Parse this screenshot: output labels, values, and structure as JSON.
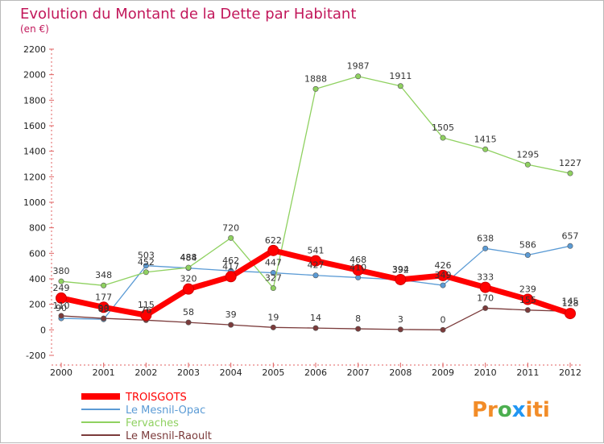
{
  "chart_data": {
    "type": "line",
    "title": "Evolution du Montant de la Dette par Habitant",
    "subtitle": "(en €)",
    "xlabel": "",
    "ylabel": "",
    "ylim": [
      -200,
      2200
    ],
    "yticks": [
      -200,
      0,
      200,
      400,
      600,
      800,
      1000,
      1200,
      1400,
      1600,
      1800,
      2000,
      2200
    ],
    "grid": false,
    "legend_position": "bottom-left",
    "categories": [
      "2000",
      "2001",
      "2002",
      "2003",
      "2004",
      "2005",
      "2006",
      "2007",
      "2008",
      "2009",
      "2010",
      "2011",
      "2012"
    ],
    "series": [
      {
        "name": "TROISGOTS",
        "color": "#ff0000",
        "values": [
          249,
          177,
          115,
          320,
          417,
          622,
          541,
          468,
          394,
          426,
          333,
          239,
          128
        ]
      },
      {
        "name": "Le Mesnil-Opac",
        "color": "#5b9bd5",
        "values": [
          90,
          83,
          503,
          484,
          462,
          447,
          427,
          410,
          392,
          349,
          638,
          586,
          657
        ]
      },
      {
        "name": "Fervaches",
        "color": "#8fd160",
        "values": [
          380,
          348,
          452,
          488,
          720,
          327,
          1888,
          1987,
          1911,
          1505,
          1415,
          1295,
          1227
        ]
      },
      {
        "name": "Le Mesnil-Raoult",
        "color": "#7b3b3b",
        "values": [
          110,
          90,
          76,
          58,
          39,
          19,
          14,
          8,
          3,
          0,
          170,
          155,
          145
        ]
      }
    ]
  },
  "brand": {
    "p1": "Pr",
    "p2": "o",
    "p3": "x",
    "p4": "iti"
  }
}
